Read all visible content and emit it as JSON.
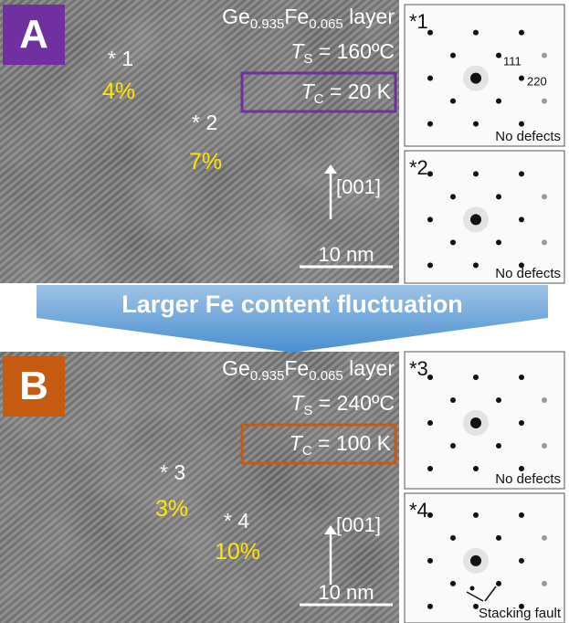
{
  "panels": [
    {
      "label": "A",
      "layer": {
        "base1": "Ge",
        "sub1": "0.935",
        "base2": "Fe",
        "sub2": "0.065",
        "suffix": " layer"
      },
      "ts": {
        "symbol": "T",
        "sub": "S",
        "value": " = 160ºC"
      },
      "tc": {
        "symbol": "T",
        "sub": "C",
        "value": " = 20 K"
      },
      "points": [
        {
          "label": "* 1",
          "percent": "4%"
        },
        {
          "label": "* 2",
          "percent": "7%"
        }
      ],
      "direction": "[001]",
      "scale": "10 nm",
      "diffraction": [
        {
          "label": "*1",
          "annotations": [
            "111",
            "220"
          ],
          "note": "No defects"
        },
        {
          "label": "*2",
          "note": "No defects"
        }
      ]
    },
    {
      "label": "B",
      "layer": {
        "base1": "Ge",
        "sub1": "0.935",
        "base2": "Fe",
        "sub2": "0.065",
        "suffix": " layer"
      },
      "ts": {
        "symbol": "T",
        "sub": "S",
        "value": " = 240ºC"
      },
      "tc": {
        "symbol": "T",
        "sub": "C",
        "value": " = 100 K"
      },
      "points": [
        {
          "label": "* 3",
          "percent": "3%"
        },
        {
          "label": "* 4",
          "percent": "10%"
        }
      ],
      "direction": "[001]",
      "scale": "10 nm",
      "diffraction": [
        {
          "label": "*3",
          "note": "No defects"
        },
        {
          "label": "*4",
          "note": "Stacking fault"
        }
      ]
    }
  ],
  "banner": "Larger Fe content fluctuation"
}
